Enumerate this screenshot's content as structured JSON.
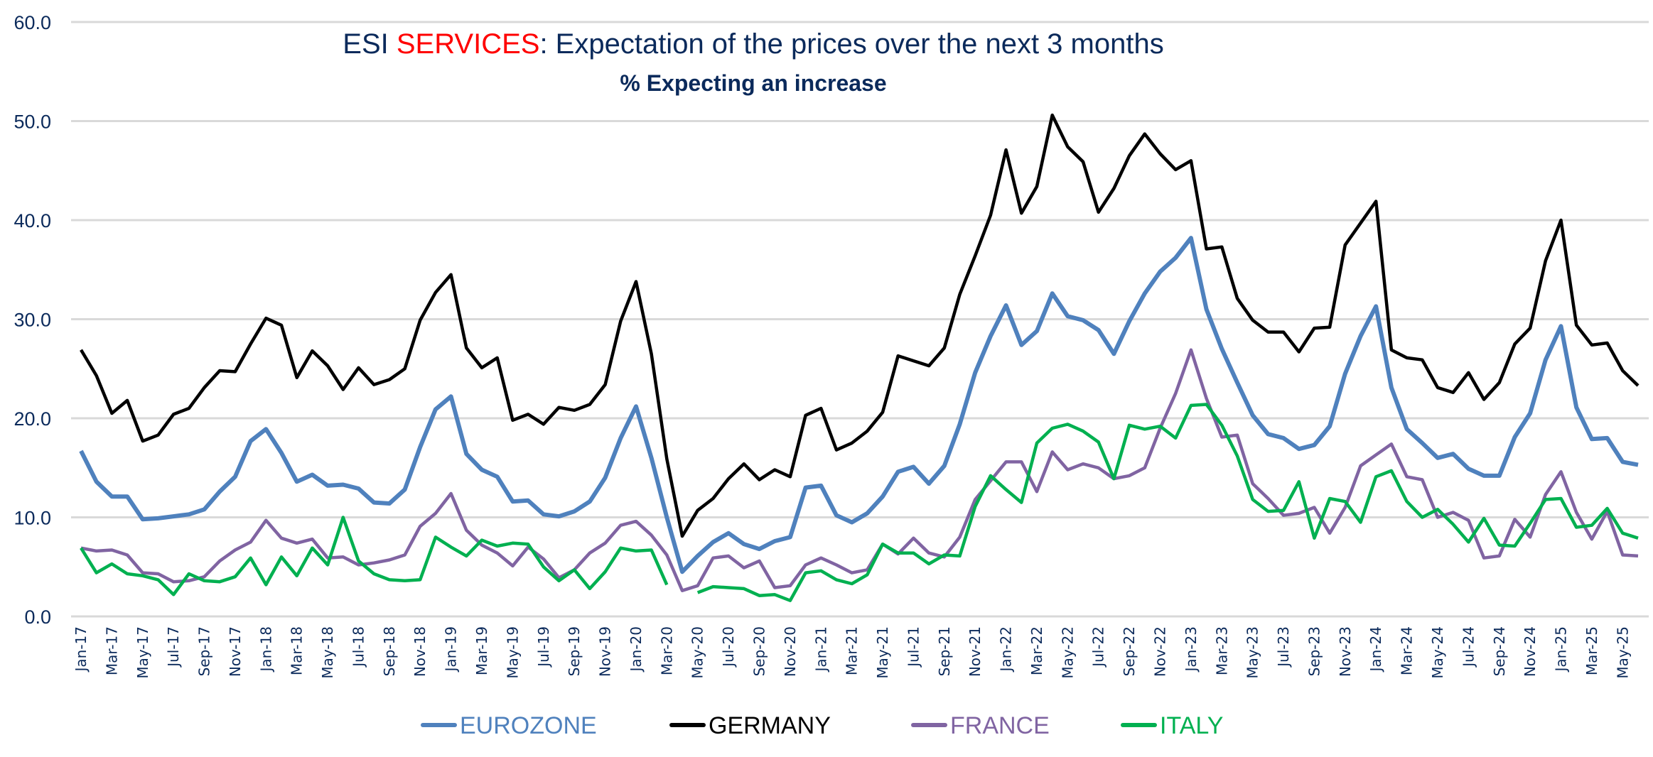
{
  "chart_data": {
    "type": "line",
    "title_parts": [
      {
        "text": "ESI ",
        "color": "#0b2a5b"
      },
      {
        "text": "SERVICES",
        "color": "#ff0000"
      },
      {
        "text": ": Expectation of the prices over the next 3 months",
        "color": "#0b2a5b"
      }
    ],
    "subtitle": "% Expecting an increase",
    "xlabel": "",
    "ylabel": "",
    "ylim": [
      0,
      60
    ],
    "yticks": [
      "0.0",
      "10.0",
      "20.0",
      "30.0",
      "40.0",
      "50.0",
      "60.0"
    ],
    "grid": true,
    "legend_position": "bottom",
    "x": [
      "Jan-17",
      "Feb-17",
      "Mar-17",
      "Apr-17",
      "May-17",
      "Jun-17",
      "Jul-17",
      "Aug-17",
      "Sep-17",
      "Oct-17",
      "Nov-17",
      "Dec-17",
      "Jan-18",
      "Feb-18",
      "Mar-18",
      "Apr-18",
      "May-18",
      "Jun-18",
      "Jul-18",
      "Aug-18",
      "Sep-18",
      "Oct-18",
      "Nov-18",
      "Dec-18",
      "Jan-19",
      "Feb-19",
      "Mar-19",
      "Apr-19",
      "May-19",
      "Jun-19",
      "Jul-19",
      "Aug-19",
      "Sep-19",
      "Oct-19",
      "Nov-19",
      "Dec-19",
      "Jan-20",
      "Feb-20",
      "Mar-20",
      "Apr-20",
      "May-20",
      "Jun-20",
      "Jul-20",
      "Aug-20",
      "Sep-20",
      "Oct-20",
      "Nov-20",
      "Dec-20",
      "Jan-21",
      "Feb-21",
      "Mar-21",
      "Apr-21",
      "May-21",
      "Jun-21",
      "Jul-21",
      "Aug-21",
      "Sep-21",
      "Oct-21",
      "Nov-21",
      "Dec-21",
      "Jan-22",
      "Feb-22",
      "Mar-22",
      "Apr-22",
      "May-22",
      "Jun-22",
      "Jul-22",
      "Aug-22",
      "Sep-22",
      "Oct-22",
      "Nov-22",
      "Dec-22",
      "Jan-23",
      "Feb-23",
      "Mar-23",
      "Apr-23",
      "May-23",
      "Jun-23",
      "Jul-23",
      "Aug-23",
      "Sep-23",
      "Oct-23",
      "Nov-23",
      "Dec-23",
      "Jan-24",
      "Feb-24",
      "Mar-24",
      "Apr-24",
      "May-24",
      "Jun-24",
      "Jul-24",
      "Aug-24",
      "Sep-24",
      "Oct-24",
      "Nov-24",
      "Dec-24",
      "Jan-25",
      "Feb-25",
      "Mar-25",
      "Apr-25",
      "May-25",
      "Jun-25"
    ],
    "tick_labels_every": 2,
    "series": [
      {
        "name": "EUROZONE",
        "color": "#4f81bd",
        "values": [
          16.7,
          13.6,
          12.1,
          12.1,
          9.8,
          9.9,
          10.1,
          10.3,
          10.8,
          12.6,
          14.1,
          17.7,
          18.9,
          16.5,
          13.6,
          14.3,
          13.2,
          13.3,
          12.9,
          11.5,
          11.4,
          12.8,
          17.1,
          20.9,
          22.2,
          16.4,
          14.8,
          14.1,
          11.6,
          11.7,
          10.3,
          10.1,
          10.6,
          11.6,
          14.0,
          18.0,
          21.2,
          16.0,
          10.0,
          4.5,
          6.1,
          7.5,
          8.4,
          7.3,
          6.8,
          7.6,
          8.0,
          13.0,
          13.2,
          10.2,
          9.5,
          10.4,
          12.1,
          14.6,
          15.1,
          13.4,
          15.2,
          19.4,
          24.6,
          28.3,
          31.4,
          27.4,
          28.8,
          32.6,
          30.3,
          29.9,
          28.9,
          26.5,
          29.8,
          32.6,
          34.8,
          36.2,
          38.2,
          31.0,
          27.0,
          23.6,
          20.3,
          18.4,
          18.0,
          16.9,
          17.3,
          19.2,
          24.5,
          28.3,
          31.3,
          23.1,
          18.9,
          17.5,
          16.0,
          16.4,
          14.9,
          14.2,
          14.2,
          18.1,
          20.5,
          25.9,
          29.3,
          21.1,
          17.9,
          18.0,
          15.6,
          15.3
        ]
      },
      {
        "name": "GERMANY",
        "color": "#000000",
        "values": [
          26.9,
          24.3,
          20.5,
          21.8,
          17.7,
          18.3,
          20.4,
          21.0,
          23.1,
          24.8,
          24.7,
          27.5,
          30.1,
          29.4,
          24.1,
          26.8,
          25.3,
          22.9,
          25.1,
          23.4,
          23.9,
          25.0,
          29.9,
          32.7,
          34.5,
          27.1,
          25.1,
          26.1,
          19.8,
          20.4,
          19.4,
          21.1,
          20.8,
          21.4,
          23.4,
          29.8,
          33.8,
          26.5,
          15.9,
          8.1,
          10.7,
          11.9,
          13.9,
          15.4,
          13.8,
          14.8,
          14.1,
          20.3,
          21.0,
          16.8,
          17.5,
          18.7,
          20.6,
          26.3,
          25.8,
          25.3,
          27.1,
          32.5,
          36.4,
          40.5,
          47.1,
          40.7,
          43.4,
          50.6,
          47.4,
          45.9,
          40.8,
          43.2,
          46.5,
          48.7,
          46.7,
          45.1,
          46.0,
          37.1,
          37.3,
          32.1,
          29.9,
          28.7,
          28.7,
          26.7,
          29.1,
          29.2,
          37.5,
          39.7,
          41.9,
          26.9,
          26.1,
          25.9,
          23.1,
          22.6,
          24.6,
          21.9,
          23.6,
          27.5,
          29.1,
          35.9,
          40.0,
          29.4,
          27.4,
          27.6,
          24.8,
          23.3
        ]
      },
      {
        "name": "FRANCE",
        "color": "#8064a2",
        "values": [
          6.9,
          6.6,
          6.7,
          6.2,
          4.4,
          4.3,
          3.5,
          3.6,
          4.0,
          5.6,
          6.7,
          7.5,
          9.7,
          7.9,
          7.4,
          7.8,
          5.9,
          6.0,
          5.2,
          5.4,
          5.7,
          6.2,
          9.1,
          10.4,
          12.4,
          8.7,
          7.2,
          6.4,
          5.1,
          7.0,
          5.8,
          3.9,
          4.7,
          6.4,
          7.4,
          9.2,
          9.6,
          8.2,
          6.2,
          2.6,
          3.1,
          5.9,
          6.1,
          4.9,
          5.6,
          2.9,
          3.1,
          5.2,
          5.9,
          5.2,
          4.4,
          4.7,
          7.3,
          6.3,
          7.9,
          6.4,
          6.0,
          8.0,
          11.8,
          13.7,
          15.6,
          15.6,
          12.6,
          16.6,
          14.8,
          15.4,
          15.0,
          13.9,
          14.2,
          15.0,
          19.0,
          22.5,
          26.9,
          22.0,
          18.1,
          18.3,
          13.4,
          11.9,
          10.2,
          10.4,
          11.0,
          8.4,
          11.0,
          15.2,
          16.3,
          17.4,
          14.1,
          13.8,
          10.0,
          10.5,
          9.7,
          5.9,
          6.1,
          9.8,
          8.0,
          12.3,
          14.6,
          10.5,
          7.8,
          10.6,
          6.2,
          6.1
        ]
      },
      {
        "name": "ITALY",
        "color": "#00b050",
        "values": [
          6.9,
          4.4,
          5.3,
          4.3,
          4.1,
          3.7,
          2.2,
          4.3,
          3.6,
          3.5,
          4.0,
          5.9,
          3.2,
          6.0,
          4.1,
          6.9,
          5.2,
          10.0,
          5.6,
          4.3,
          3.7,
          3.6,
          3.7,
          8.0,
          7.0,
          6.1,
          7.7,
          7.1,
          7.4,
          7.3,
          5.0,
          3.6,
          4.7,
          2.8,
          4.5,
          6.9,
          6.6,
          6.7,
          3.2,
          null,
          2.4,
          3.0,
          2.9,
          2.8,
          2.1,
          2.2,
          1.6,
          4.4,
          4.6,
          3.7,
          3.3,
          4.2,
          7.3,
          6.4,
          6.4,
          5.3,
          6.2,
          6.1,
          11.1,
          14.2,
          12.8,
          11.5,
          17.5,
          19.0,
          19.4,
          18.7,
          17.6,
          13.9,
          19.3,
          18.9,
          19.2,
          18.0,
          21.3,
          21.4,
          19.3,
          16.2,
          11.8,
          10.6,
          10.7,
          13.6,
          7.9,
          11.9,
          11.6,
          9.5,
          14.1,
          14.7,
          11.6,
          10.0,
          10.8,
          9.3,
          7.5,
          9.9,
          7.2,
          7.1,
          9.4,
          11.8,
          11.9,
          9.0,
          9.2,
          10.9,
          8.4,
          7.9
        ]
      }
    ]
  }
}
